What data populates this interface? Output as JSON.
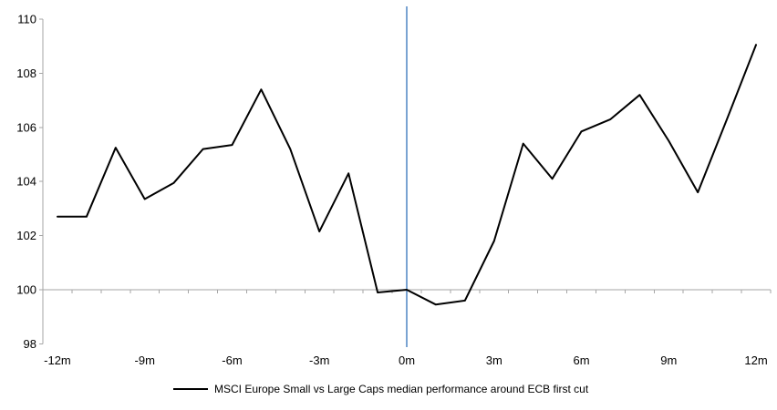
{
  "figure": {
    "background": "#FFFFFF"
  },
  "chart_data": {
    "type": "line",
    "title": "",
    "xlabel": "",
    "ylabel": "",
    "categories_months": [
      -12,
      -11,
      -10,
      -9,
      -8,
      -7,
      -6,
      -5,
      -4,
      -3,
      -2,
      -1,
      0,
      1,
      2,
      3,
      4,
      5,
      6,
      7,
      8,
      9,
      10,
      11,
      12
    ],
    "series": [
      {
        "name": "MSCI Europe Small vs Large Caps median performance around ECB first cut",
        "color": "#000000",
        "values": [
          102.7,
          102.7,
          105.25,
          103.35,
          103.95,
          105.2,
          105.35,
          107.4,
          105.2,
          102.15,
          104.3,
          99.9,
          100.0,
          99.45,
          99.6,
          101.8,
          105.4,
          104.1,
          105.85,
          106.3,
          107.2,
          105.5,
          103.6,
          106.3,
          109.05
        ]
      }
    ],
    "ylim": [
      98,
      110
    ],
    "yticks": [
      110,
      108,
      106,
      104,
      102,
      100,
      98
    ],
    "xtick_months": [
      -12,
      -9,
      -6,
      -3,
      0,
      3,
      6,
      9,
      12
    ],
    "xtick_labels": [
      "-12m",
      "-9m",
      "-6m",
      "-3m",
      "0m",
      "3m",
      "6m",
      "9m",
      "12m"
    ],
    "baseline_value": 100,
    "event_line": {
      "month": 0,
      "color": "#7AA3D2"
    },
    "axis_color": "#A6A6A6",
    "grid": false,
    "legend_position": "bottom-center"
  }
}
